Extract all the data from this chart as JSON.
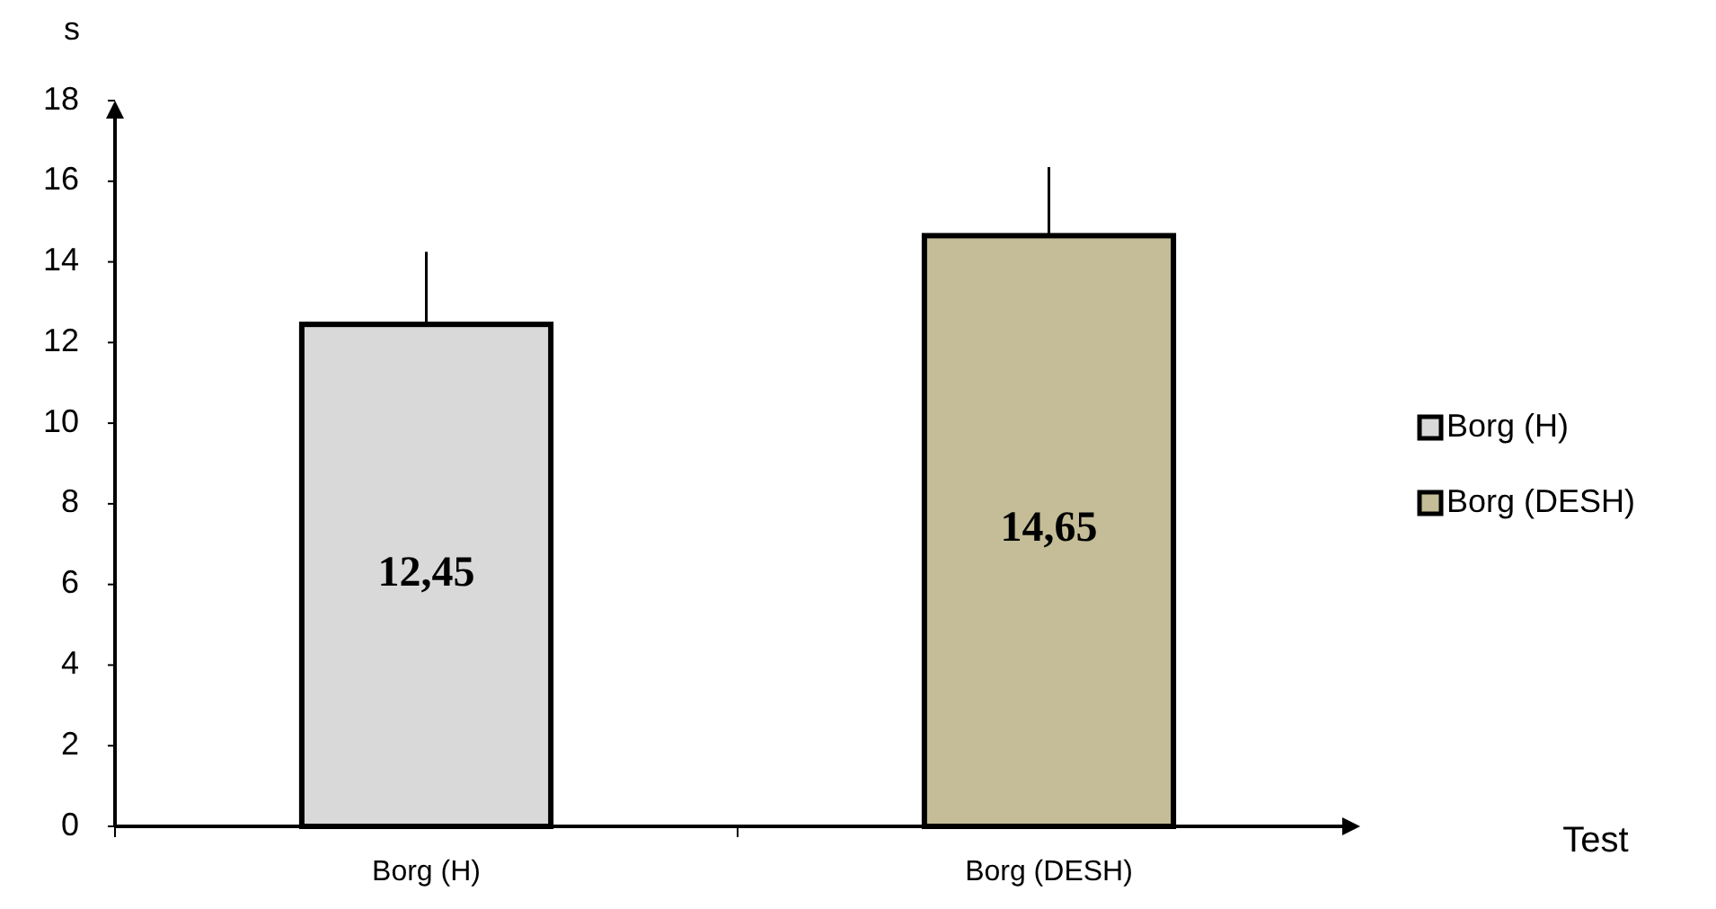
{
  "chart_data": {
    "type": "bar",
    "ylabel": "s",
    "annotations": [
      "Test"
    ],
    "categories": [
      "Borg (H)",
      "Borg (DESH)"
    ],
    "series": [
      {
        "name": "Borg (H)",
        "color": "#d9d9d9",
        "values": [
          12.45,
          null
        ],
        "errors": [
          1.8,
          null
        ],
        "value_labels": [
          "12,45",
          null
        ]
      },
      {
        "name": "Borg (DESH)",
        "color": "#c4bd97",
        "values": [
          null,
          14.65
        ],
        "errors": [
          null,
          1.7
        ],
        "value_labels": [
          null,
          "14,65"
        ]
      }
    ],
    "ylim": [
      0,
      18
    ],
    "yticks": [
      0,
      2,
      4,
      6,
      8,
      10,
      12,
      14,
      16,
      18
    ],
    "legend": "right",
    "grid": false
  }
}
